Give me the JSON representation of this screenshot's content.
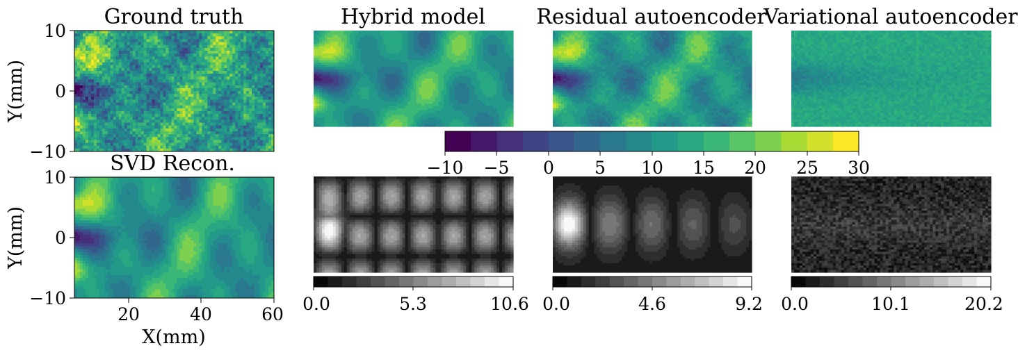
{
  "chart_data": {
    "type": "heatmap",
    "panels": [
      {
        "id": "ground-truth",
        "title": "Ground truth",
        "colormap": "viridis",
        "kind": "field",
        "seed": 11,
        "noise": 0.55,
        "smooth": 0.35
      },
      {
        "id": "hybrid",
        "title": "Hybrid model",
        "colormap": "viridis",
        "kind": "field",
        "seed": 3,
        "noise": 0.0,
        "smooth": 1.0
      },
      {
        "id": "residual-ae",
        "title": "Residual autoencoder",
        "colormap": "viridis",
        "kind": "field",
        "seed": 5,
        "noise": 0.12,
        "smooth": 0.85
      },
      {
        "id": "variational-ae",
        "title": "Variational autoencoder",
        "colormap": "viridis",
        "kind": "blurred",
        "seed": 9
      },
      {
        "id": "svd",
        "title": "SVD Recon.",
        "colormap": "viridis",
        "kind": "field",
        "seed": 4,
        "noise": 0.05,
        "smooth": 0.95
      },
      {
        "id": "hybrid-error",
        "title": "",
        "colormap": "gray",
        "kind": "error",
        "seed": 21,
        "intensity": 0.55
      },
      {
        "id": "residual-error",
        "title": "",
        "colormap": "gray",
        "kind": "error-near",
        "seed": 22,
        "intensity": 0.5
      },
      {
        "id": "variational-error",
        "title": "",
        "colormap": "gray",
        "kind": "noise-error",
        "seed": 23,
        "intensity": 0.25
      }
    ],
    "xlabel": "X(mm)",
    "ylabel": "Y(mm)",
    "x_ticks": [
      "20",
      "40",
      "60"
    ],
    "x_tick_values": [
      20,
      40,
      60
    ],
    "xlim": [
      5,
      60
    ],
    "y_ticks": [
      "10",
      "0",
      "−10"
    ],
    "y_tick_values": [
      10,
      0,
      -10
    ],
    "ylim": [
      -10,
      10
    ],
    "main_colorbar": {
      "range": [
        -10,
        30
      ],
      "levels": 16,
      "ticks": [
        "−10",
        "−5",
        "0",
        "5",
        "10",
        "15",
        "20",
        "25",
        "30"
      ],
      "tick_values": [
        -10,
        -5,
        0,
        5,
        10,
        15,
        20,
        25,
        30
      ]
    },
    "error_colorbars": [
      {
        "panel": "hybrid-error",
        "range": [
          0,
          10.6
        ],
        "levels": 14,
        "ticks": [
          "0.0",
          "5.3",
          "10.6"
        ],
        "tick_values": [
          0,
          5.3,
          10.6
        ]
      },
      {
        "panel": "residual-error",
        "range": [
          0,
          9.2
        ],
        "levels": 14,
        "ticks": [
          "0.0",
          "4.6",
          "9.2"
        ],
        "tick_values": [
          0,
          4.6,
          9.2
        ]
      },
      {
        "panel": "variational-error",
        "range": [
          0,
          20.2
        ],
        "levels": 14,
        "ticks": [
          "0.0",
          "10.1",
          "20.2"
        ],
        "tick_values": [
          0,
          10.1,
          20.2
        ]
      }
    ],
    "colors": {
      "viridis_stops": [
        "#440154",
        "#472d7b",
        "#3b528b",
        "#2c728e",
        "#21918c",
        "#28ae80",
        "#5ec962",
        "#addc30",
        "#fde725"
      ]
    }
  }
}
